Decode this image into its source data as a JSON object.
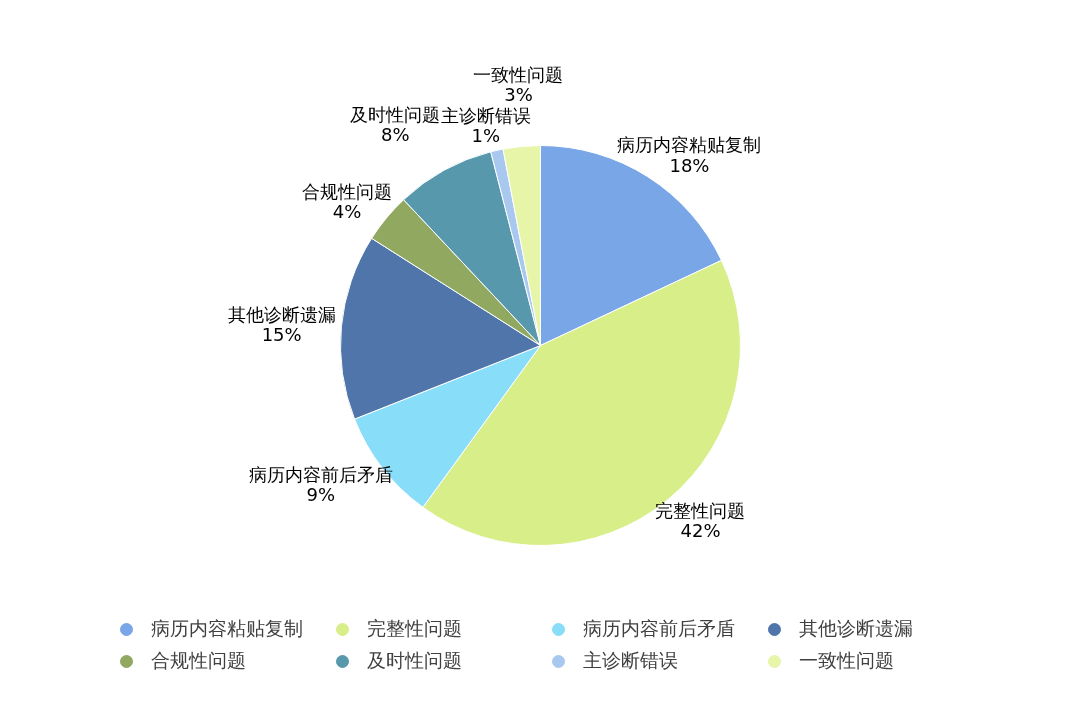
{
  "chart_data": {
    "type": "pie",
    "categories": [
      "病历内容粘贴复制",
      "完整性问题",
      "病历内容前后矛盾",
      "其他诊断遗漏",
      "合规性问题",
      "及时性问题",
      "主诊断错误",
      "一致性问题"
    ],
    "values": [
      18,
      42,
      9,
      15,
      4,
      8,
      1,
      3
    ],
    "colors": [
      "#78a6e6",
      "#d8ee88",
      "#88ddf8",
      "#5075aa",
      "#90a860",
      "#5898ac",
      "#a8c8f0",
      "#e6f5a8"
    ],
    "value_labels": [
      "18%",
      "42%",
      "9%",
      "15%",
      "4%",
      "8%",
      "1%",
      "3%"
    ],
    "legend": "bottom"
  }
}
